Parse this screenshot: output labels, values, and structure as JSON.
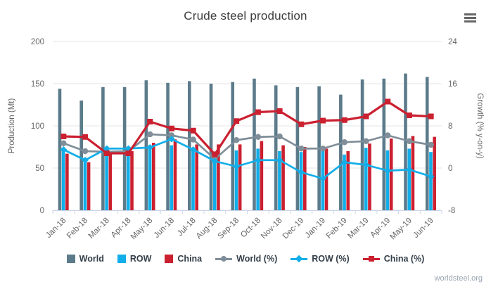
{
  "header": {
    "title": "Crude steel production"
  },
  "footer": {
    "watermark": "worldsteel.org"
  },
  "chart_data": {
    "type": "bar+line combo, dual axis",
    "categories": [
      "Jan-18",
      "Feb-18",
      "Mar-18",
      "Apr-18",
      "May-18",
      "Jun-18",
      "Jul-18",
      "Aug-18",
      "Sep-18",
      "Oct-18",
      "Nov-18",
      "Dec-19",
      "Jan-19",
      "Feb-19",
      "Mar-19",
      "Apr-19",
      "May-19",
      "Jun-19"
    ],
    "bar_series": [
      {
        "name": "World",
        "color": "#5c7b8a",
        "axis": "left",
        "values": [
          144,
          130,
          146,
          146,
          154,
          151,
          153,
          150,
          152,
          156,
          148,
          146,
          147,
          137,
          155,
          156,
          162,
          158
        ]
      },
      {
        "name": "ROW",
        "color": "#12aee9",
        "axis": "left",
        "values": [
          73,
          62,
          68,
          68,
          77,
          77,
          71,
          57,
          71,
          73,
          70,
          69,
          70,
          66,
          74,
          71,
          73,
          69
        ]
      },
      {
        "name": "China",
        "color": "#cb2030",
        "axis": "left",
        "values": [
          67,
          57,
          69,
          70,
          80,
          84,
          78,
          78,
          78,
          82,
          77,
          75,
          73,
          70,
          79,
          85,
          88,
          87
        ]
      }
    ],
    "line_series": [
      {
        "name": "World (%)",
        "color": "#7f8e99",
        "marker": "circle",
        "axis": "right",
        "values": [
          4.7,
          3.2,
          3.1,
          3.2,
          6.4,
          6.2,
          5.4,
          1.7,
          5.3,
          5.9,
          6.0,
          3.7,
          3.7,
          4.9,
          5.1,
          6.2,
          5.1,
          4.4
        ]
      },
      {
        "name": "ROW (%)",
        "color": "#12aee9",
        "marker": "diamond",
        "axis": "right",
        "values": [
          3.5,
          1.5,
          3.7,
          3.7,
          3.9,
          5.5,
          3.5,
          1.3,
          0.3,
          1.5,
          1.5,
          -0.8,
          -2.0,
          1.1,
          0.6,
          -0.5,
          -0.3,
          -1.6
        ]
      },
      {
        "name": "China (%)",
        "color": "#cb2030",
        "marker": "square",
        "axis": "right",
        "values": [
          6.0,
          5.9,
          2.8,
          2.8,
          8.8,
          7.5,
          7.1,
          2.6,
          8.9,
          10.6,
          10.8,
          8.3,
          9.0,
          9.1,
          9.8,
          12.6,
          10.0,
          9.8
        ]
      }
    ],
    "left_axis": {
      "label": "Production (Mt)",
      "min": 0,
      "max": 200,
      "ticks": [
        0,
        50,
        100,
        150,
        200
      ]
    },
    "right_axis": {
      "label": "Growth (% y-on-y)",
      "min": -8,
      "max": 24,
      "ticks": [
        -8,
        0,
        8,
        16,
        24
      ]
    },
    "grid": true,
    "legend_position": "bottom",
    "colors": {
      "grid": "#e6e6e6",
      "axis_line": "#ccd6eb",
      "tick_text": "#666666"
    }
  }
}
